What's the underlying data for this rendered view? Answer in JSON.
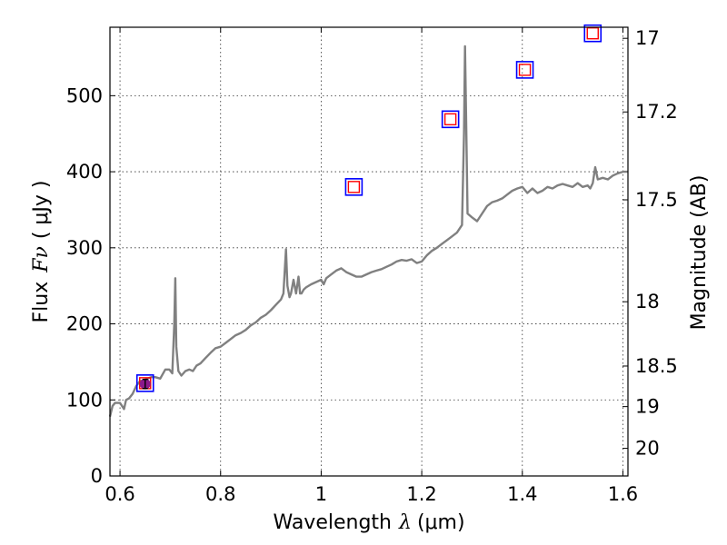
{
  "chart_data": {
    "type": "line",
    "xlabel": {
      "text": "Wavelength",
      "symbol": "λ",
      "unit": "(μm)"
    },
    "ylabel": {
      "text": "Flux",
      "symbol": "Fν",
      "unit": "( μJy )"
    },
    "y2label": "Magnitude (AB)",
    "xlim": [
      0.58,
      1.61
    ],
    "ylim": [
      0,
      590
    ],
    "x_ticks": [
      0.6,
      0.8,
      1.0,
      1.2,
      1.4,
      1.6
    ],
    "x_tick_labels": [
      "0.6",
      "0.8",
      "1",
      "1.2",
      "1.4",
      "1.6"
    ],
    "y_ticks": [
      0,
      100,
      200,
      300,
      400,
      500
    ],
    "y_tick_labels": [
      "0",
      "100",
      "200",
      "300",
      "400",
      "500"
    ],
    "y2_ticks": [
      17,
      17.2,
      17.5,
      18,
      18.5,
      19,
      20
    ],
    "y2_tick_labels": [
      "17",
      "17.2",
      "17.5",
      "18",
      "18.5",
      "19",
      "20"
    ],
    "grid": true,
    "colors": {
      "spectrum": "#808080",
      "box_outer": "#0000ff",
      "box_inner": "#ff0000",
      "measured_point": "#8b1a8b"
    },
    "series": [
      {
        "style": "line",
        "x": [
          0.58,
          0.585,
          0.59,
          0.6,
          0.608,
          0.612,
          0.618,
          0.625,
          0.632,
          0.64,
          0.648,
          0.655,
          0.662,
          0.67,
          0.68,
          0.69,
          0.698,
          0.704,
          0.708,
          0.71,
          0.712,
          0.716,
          0.722,
          0.73,
          0.738,
          0.745,
          0.752,
          0.76,
          0.77,
          0.78,
          0.79,
          0.8,
          0.81,
          0.82,
          0.83,
          0.84,
          0.85,
          0.86,
          0.87,
          0.88,
          0.89,
          0.9,
          0.91,
          0.92,
          0.925,
          0.93,
          0.933,
          0.937,
          0.94,
          0.945,
          0.95,
          0.955,
          0.958,
          0.961,
          0.965,
          0.97,
          0.98,
          0.99,
          1.0,
          1.005,
          1.01,
          1.02,
          1.03,
          1.04,
          1.05,
          1.06,
          1.07,
          1.08,
          1.09,
          1.1,
          1.11,
          1.12,
          1.13,
          1.14,
          1.15,
          1.16,
          1.17,
          1.18,
          1.19,
          1.2,
          1.21,
          1.22,
          1.23,
          1.24,
          1.25,
          1.26,
          1.27,
          1.28,
          1.284,
          1.286,
          1.288,
          1.291,
          1.3,
          1.31,
          1.32,
          1.33,
          1.34,
          1.35,
          1.36,
          1.37,
          1.38,
          1.39,
          1.4,
          1.41,
          1.42,
          1.43,
          1.44,
          1.45,
          1.46,
          1.47,
          1.48,
          1.49,
          1.5,
          1.51,
          1.52,
          1.53,
          1.535,
          1.54,
          1.545,
          1.55,
          1.56,
          1.57,
          1.58,
          1.59,
          1.6,
          1.61
        ],
        "y": [
          78,
          92,
          96,
          96,
          88,
          100,
          102,
          108,
          118,
          125,
          125,
          128,
          130,
          130,
          128,
          140,
          140,
          135,
          200,
          260,
          170,
          138,
          132,
          138,
          140,
          138,
          145,
          148,
          155,
          162,
          168,
          170,
          175,
          180,
          185,
          188,
          192,
          198,
          202,
          208,
          212,
          218,
          225,
          232,
          240,
          298,
          250,
          235,
          240,
          258,
          240,
          262,
          240,
          240,
          245,
          248,
          252,
          255,
          258,
          252,
          260,
          265,
          270,
          273,
          268,
          265,
          262,
          262,
          265,
          268,
          270,
          272,
          275,
          278,
          282,
          284,
          283,
          285,
          280,
          282,
          290,
          296,
          300,
          305,
          310,
          315,
          320,
          330,
          450,
          565,
          480,
          345,
          340,
          335,
          345,
          355,
          360,
          362,
          365,
          370,
          375,
          378,
          380,
          372,
          378,
          372,
          375,
          380,
          378,
          382,
          384,
          382,
          380,
          385,
          380,
          382,
          378,
          385,
          406,
          390,
          392,
          390,
          395,
          398,
          400,
          400
        ],
        "label": ""
      },
      {
        "style": "boxes",
        "x": [
          0.65,
          1.065,
          1.257,
          1.405,
          1.54
        ],
        "y": [
          122,
          380,
          469,
          534,
          582
        ]
      },
      {
        "style": "point",
        "x": [
          0.65
        ],
        "y": [
          121
        ],
        "yerr": [
          6
        ]
      }
    ]
  }
}
